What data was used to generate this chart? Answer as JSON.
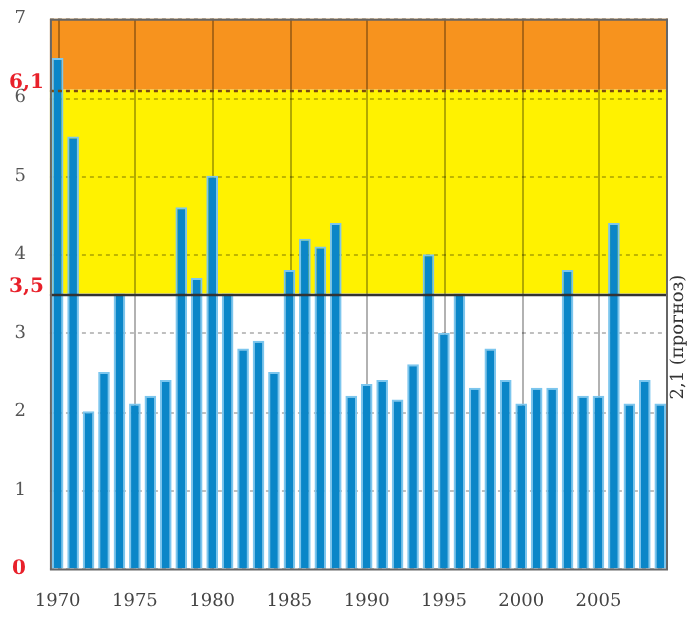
{
  "chart_data": {
    "type": "bar",
    "categories": [
      "1970",
      null,
      null,
      null,
      null,
      "1975",
      null,
      null,
      null,
      null,
      "1980",
      null,
      null,
      null,
      null,
      "1985",
      null,
      null,
      null,
      null,
      "1990",
      null,
      null,
      null,
      null,
      "1995",
      null,
      null,
      null,
      null,
      "2000",
      null,
      null,
      null,
      null,
      "2005",
      null,
      null,
      null,
      null
    ],
    "values": [
      6.5,
      5.5,
      2.0,
      2.5,
      3.5,
      2.1,
      2.2,
      2.4,
      4.6,
      3.7,
      5.0,
      3.5,
      2.8,
      2.9,
      2.5,
      3.8,
      4.2,
      4.1,
      4.4,
      2.2,
      2.35,
      2.4,
      2.15,
      2.6,
      4.0,
      3.0,
      3.5,
      2.3,
      2.8,
      2.4,
      2.1,
      2.3,
      2.3,
      3.8,
      2.2,
      2.2,
      4.4,
      2.1,
      2.4,
      2.1
    ],
    "color": "#0a86c8",
    "ylim": [
      0,
      7
    ],
    "yticks": [
      0,
      1,
      2,
      3,
      4,
      5,
      6,
      7
    ],
    "grid": true,
    "legend": false,
    "bands": [
      {
        "axis": "y",
        "from": 3.5,
        "to": 6.1,
        "color": "#fff200"
      },
      {
        "axis": "y",
        "from": 6.1,
        "to": 7,
        "color": "#f7931e"
      }
    ],
    "ref_lines": [
      {
        "axis": "y",
        "value": 3.5,
        "label": "3,5",
        "color": "#333333",
        "line_style": "solid"
      },
      {
        "axis": "y",
        "value": 6.1,
        "label": "6,1",
        "color": "#7a4a10",
        "line_style": "dotted"
      }
    ],
    "annotations": [
      "2,1 (прогноз)"
    ]
  }
}
